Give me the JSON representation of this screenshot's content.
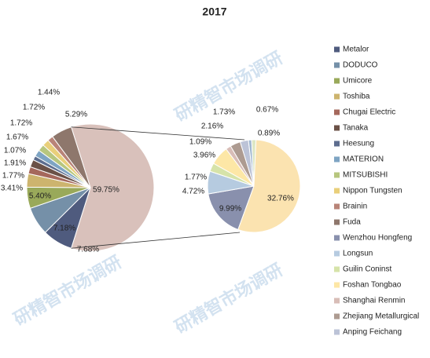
{
  "chart_data": {
    "type": "pie",
    "title": "2017",
    "watermark": "研精智市场调研",
    "categories": [
      "Metalor",
      "DODUCO",
      "Umicore",
      "Toshiba",
      "Chugai Electric",
      "Tanaka",
      "Heesung",
      "MATERION",
      "MITSUBISHI",
      "Nippon Tungsten",
      "Brainin",
      "Fuda",
      "Wenzhou Hongfeng",
      "Longsun",
      "Guilin Coninst",
      "Foshan Tongbao",
      "Shanghai Renmin",
      "Zhejiang Metallurgical",
      "Anping Feichang",
      null,
      null,
      null
    ],
    "values": [
      7.68,
      7.18,
      5.4,
      3.41,
      1.77,
      1.91,
      1.07,
      1.67,
      1.72,
      1.72,
      1.44,
      5.29,
      9.99,
      4.72,
      1.77,
      3.96,
      1.09,
      2.16,
      1.73,
      0.67,
      0.89,
      32.76
    ],
    "value_labels": [
      "7.68%",
      "7.18%",
      "5.40%",
      "3.41%",
      "1.77%",
      "1.91%",
      "1.07%",
      "1.67%",
      "1.72%",
      "1.72%",
      "1.44%",
      "5.29%",
      "9.99%",
      "4.72%",
      "1.77%",
      "3.96%",
      "1.09%",
      "2.16%",
      "1.73%",
      "0.67%",
      "0.89%",
      "32.76%"
    ],
    "colors": [
      "#4f5b7e",
      "#7590a8",
      "#99a95a",
      "#cdb46e",
      "#a5685c",
      "#6b5147",
      "#5d6d8e",
      "#7ea4c3",
      "#b7c67e",
      "#e9cf7a",
      "#b98478",
      "#8e776c",
      "#8990ad",
      "#b6cbe0",
      "#d6e3a9",
      "#fde7a6",
      "#d8bdb7",
      "#ad9b91",
      "#bcc3d7",
      "#9fb6d0",
      "#dde7c4",
      "#fbe3b0"
    ],
    "secondary_count": 10,
    "other_value": 59.75,
    "other_label": "59.75%",
    "other_color": "#d9c1bb",
    "legend": "right"
  }
}
